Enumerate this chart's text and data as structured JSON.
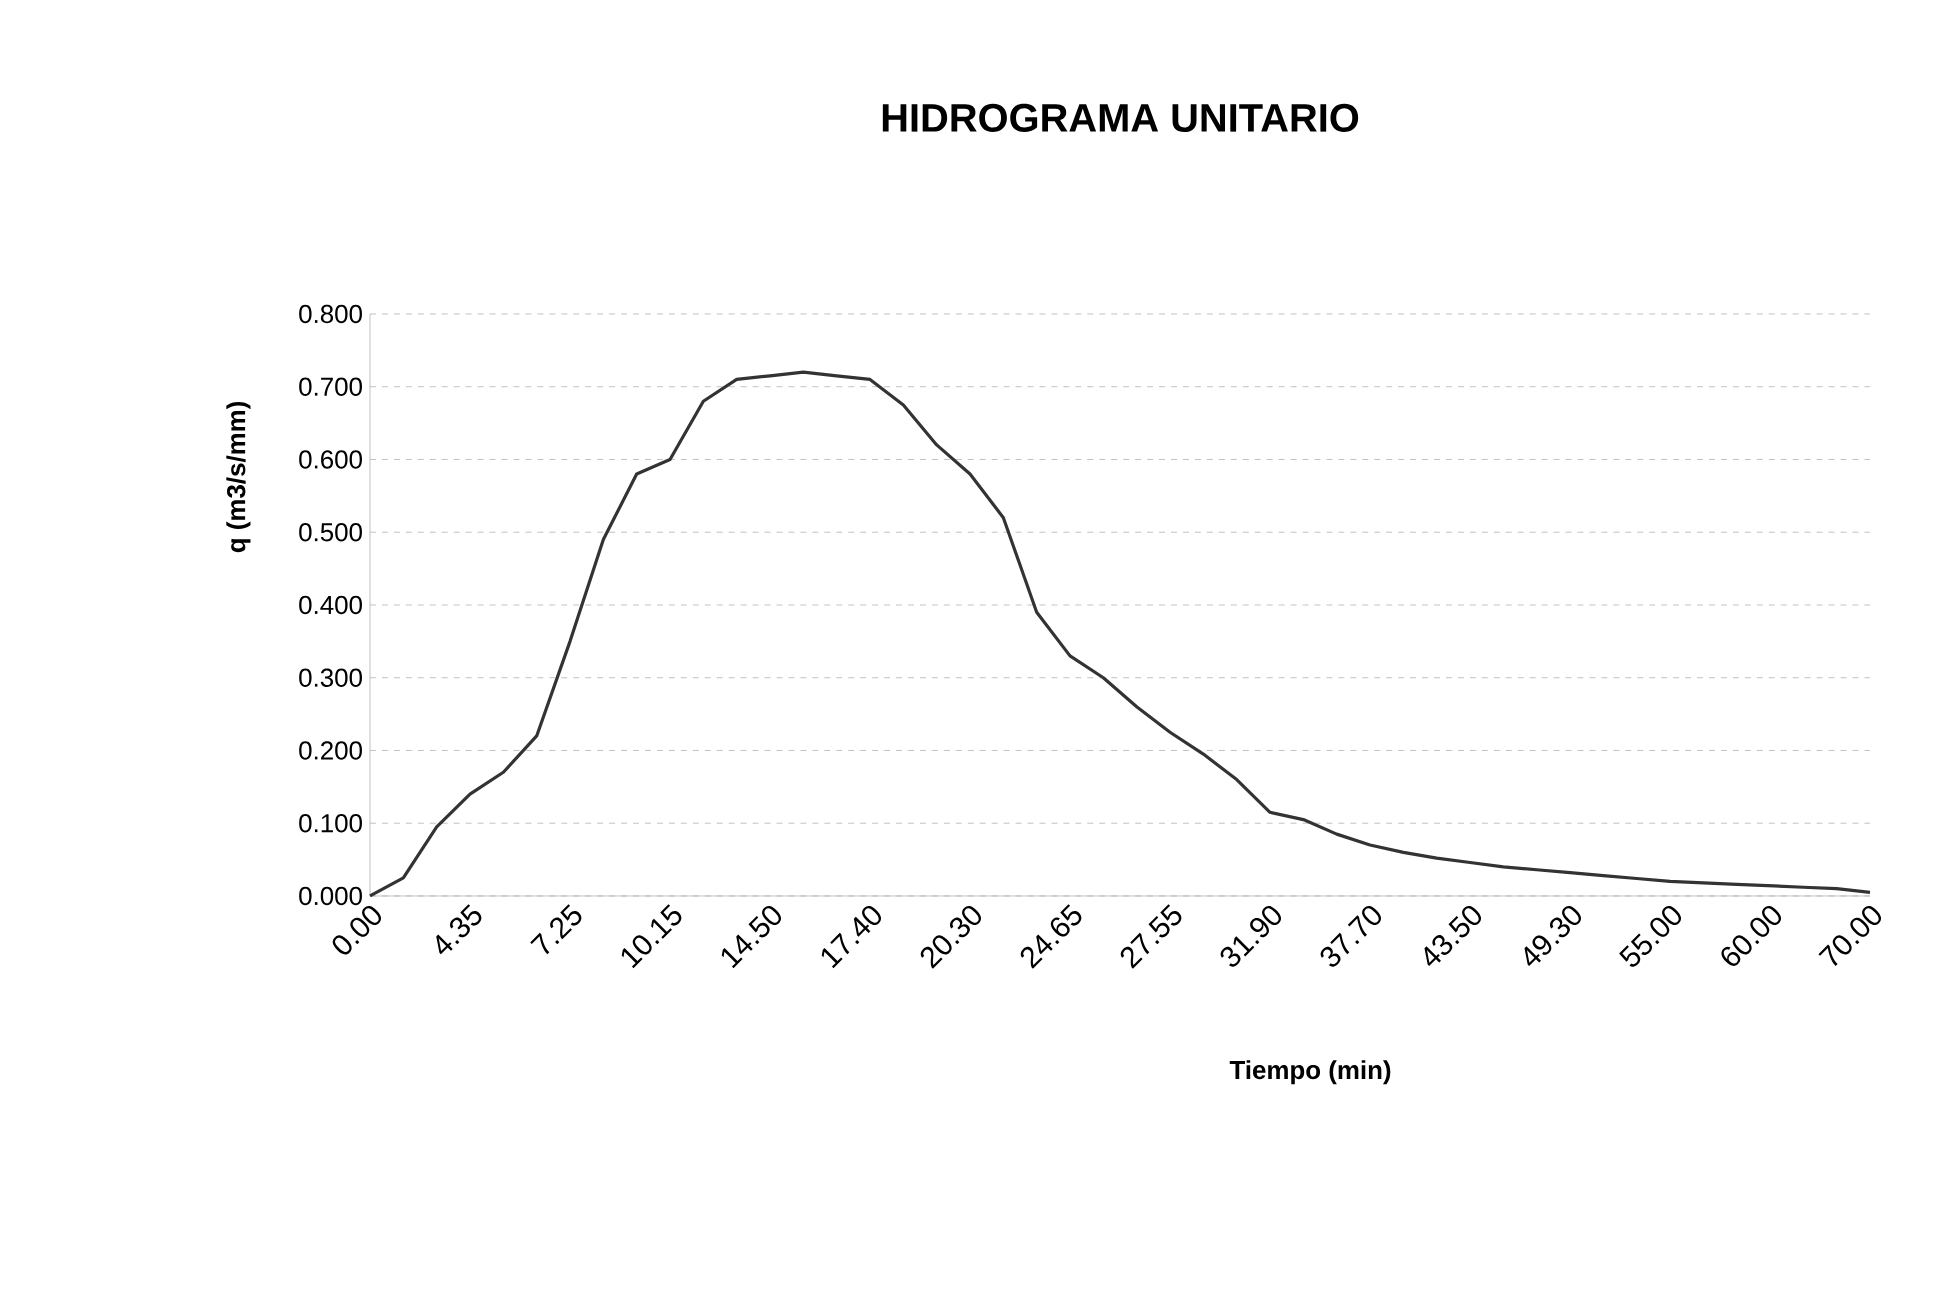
{
  "chart_data": {
    "type": "line",
    "title": "HIDROGRAMA UNITARIO",
    "xlabel": "Tiempo (min)",
    "ylabel": "q (m3/s/mm)",
    "categories": [
      "0.00",
      null,
      null,
      "4.35",
      null,
      null,
      "7.25",
      null,
      null,
      "10.15",
      null,
      null,
      "14.50",
      null,
      null,
      "17.40",
      null,
      null,
      "20.30",
      null,
      null,
      "24.65",
      null,
      null,
      "27.55",
      null,
      null,
      "31.90",
      null,
      null,
      "37.70",
      null,
      null,
      "43.50",
      null,
      null,
      "49.30",
      null,
      null,
      "55.00",
      null,
      null,
      "60.00",
      null,
      null,
      "70.00"
    ],
    "series": [
      {
        "color": "#333333",
        "values": [
          0,
          0.025,
          0.095,
          0.14,
          0.17,
          0.22,
          0.35,
          0.49,
          0.58,
          0.6,
          0.68,
          0.71,
          0.715,
          0.72,
          0.715,
          0.71,
          0.675,
          0.62,
          0.58,
          0.52,
          0.39,
          0.33,
          0.3,
          0.26,
          0.225,
          0.195,
          0.16,
          0.115,
          0.105,
          0.085,
          0.07,
          0.06,
          0.052,
          0.046,
          0.04,
          0.036,
          0.032,
          0.028,
          0.024,
          0.02,
          0.018,
          0.016,
          0.014,
          0.012,
          0.01,
          0.005
        ]
      }
    ],
    "ylim": [
      0,
      0.8
    ],
    "yticks": [
      {
        "value": 0,
        "label": "0.000"
      },
      {
        "value": 0.1,
        "label": "0.100"
      },
      {
        "value": 0.2,
        "label": "0.200"
      },
      {
        "value": 0.3,
        "label": "0.300"
      },
      {
        "value": 0.4,
        "label": "0.400"
      },
      {
        "value": 0.5,
        "label": "0.500"
      },
      {
        "value": 0.6,
        "label": "0.600"
      },
      {
        "value": 0.7,
        "label": "0.700"
      },
      {
        "value": 0.8,
        "label": "0.800"
      }
    ],
    "grid": "y",
    "marker": "none",
    "line_style": "solid"
  }
}
